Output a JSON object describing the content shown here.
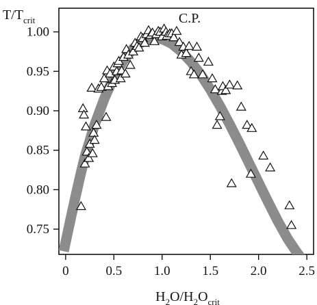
{
  "chart_data": {
    "type": "scatter",
    "title": "",
    "annotation": "C.P.",
    "ylabel": {
      "base": "T/T",
      "sub": "crit"
    },
    "xlabel": {
      "parts": [
        {
          "t": "H",
          "sub": false
        },
        {
          "t": "2",
          "sub": true
        },
        {
          "t": "O/H",
          "sub": false
        },
        {
          "t": "2",
          "sub": true
        },
        {
          "t": "O",
          "sub": false
        },
        {
          "t": "crit",
          "sub": true
        }
      ]
    },
    "xlim": [
      -0.07,
      2.57
    ],
    "ylim": [
      0.718,
      1.03
    ],
    "xticks": [
      0,
      0.5,
      1.0,
      1.5,
      2.0,
      2.5
    ],
    "xtick_labels": [
      "0",
      "0.5",
      "1.0",
      "1.5",
      "2.0",
      "2.5"
    ],
    "yticks": [
      0.75,
      0.8,
      0.85,
      0.9,
      0.95,
      1.0
    ],
    "ytick_labels": [
      "0.75",
      "0.80",
      "0.85",
      "0.90",
      "0.95",
      "1.00"
    ],
    "marker": "open-triangle",
    "fit_curve": {
      "style": "thick-gray",
      "color": "#8c8c8c",
      "x": [
        -0.02,
        0.05,
        0.1,
        0.15,
        0.2,
        0.3,
        0.4,
        0.5,
        0.6,
        0.7,
        0.8,
        0.9,
        1.0,
        1.1,
        1.2,
        1.3,
        1.4,
        1.5,
        1.6,
        1.7,
        1.8,
        1.9,
        2.0,
        2.1,
        2.2,
        2.3,
        2.4,
        2.45
      ],
      "y": [
        0.722,
        0.762,
        0.79,
        0.817,
        0.842,
        0.882,
        0.915,
        0.943,
        0.964,
        0.979,
        0.988,
        0.992,
        0.991,
        0.985,
        0.975,
        0.962,
        0.946,
        0.927,
        0.906,
        0.883,
        0.859,
        0.834,
        0.809,
        0.784,
        0.76,
        0.738,
        0.72,
        0.712
      ]
    },
    "points": [
      [
        0.16,
        0.779
      ],
      [
        0.18,
        0.903
      ],
      [
        0.19,
        0.895
      ],
      [
        0.2,
        0.833
      ],
      [
        0.21,
        0.88
      ],
      [
        0.22,
        0.848
      ],
      [
        0.24,
        0.84
      ],
      [
        0.25,
        0.858
      ],
      [
        0.27,
        0.929
      ],
      [
        0.28,
        0.846
      ],
      [
        0.29,
        0.872
      ],
      [
        0.3,
        0.863
      ],
      [
        0.32,
        0.882
      ],
      [
        0.34,
        0.928
      ],
      [
        0.37,
        0.93
      ],
      [
        0.4,
        0.941
      ],
      [
        0.42,
        0.892
      ],
      [
        0.43,
        0.951
      ],
      [
        0.44,
        0.931
      ],
      [
        0.46,
        0.947
      ],
      [
        0.48,
        0.935
      ],
      [
        0.5,
        0.956
      ],
      [
        0.51,
        0.939
      ],
      [
        0.53,
        0.95
      ],
      [
        0.54,
        0.96
      ],
      [
        0.55,
        0.963
      ],
      [
        0.57,
        0.941
      ],
      [
        0.58,
        0.951
      ],
      [
        0.6,
        0.968
      ],
      [
        0.62,
        0.947
      ],
      [
        0.63,
        0.978
      ],
      [
        0.65,
        0.971
      ],
      [
        0.67,
        0.958
      ],
      [
        0.7,
        0.975
      ],
      [
        0.72,
        0.986
      ],
      [
        0.74,
        0.982
      ],
      [
        0.76,
        0.98
      ],
      [
        0.78,
        0.994
      ],
      [
        0.8,
        0.992
      ],
      [
        0.82,
        0.986
      ],
      [
        0.84,
        0.997
      ],
      [
        0.86,
        1.002
      ],
      [
        0.88,
        0.996
      ],
      [
        0.9,
        0.999
      ],
      [
        0.92,
        0.988
      ],
      [
        0.94,
        0.997
      ],
      [
        0.96,
        1.001
      ],
      [
        0.98,
        1.0
      ],
      [
        1.0,
        0.994
      ],
      [
        1.02,
        1.004
      ],
      [
        1.04,
        1.0
      ],
      [
        1.05,
        0.995
      ],
      [
        1.08,
        0.998
      ],
      [
        1.1,
        0.998
      ],
      [
        1.12,
        0.993
      ],
      [
        1.15,
        1.001
      ],
      [
        1.18,
        0.987
      ],
      [
        1.2,
        0.971
      ],
      [
        1.22,
        0.981
      ],
      [
        1.25,
        0.973
      ],
      [
        1.28,
        0.982
      ],
      [
        1.3,
        0.95
      ],
      [
        1.33,
        0.946
      ],
      [
        1.36,
        0.981
      ],
      [
        1.38,
        0.967
      ],
      [
        1.42,
        0.946
      ],
      [
        1.48,
        0.962
      ],
      [
        1.52,
        0.941
      ],
      [
        1.55,
        0.927
      ],
      [
        1.57,
        0.882
      ],
      [
        1.6,
        0.893
      ],
      [
        1.62,
        0.925
      ],
      [
        1.63,
        0.931
      ],
      [
        1.66,
        0.926
      ],
      [
        1.7,
        0.933
      ],
      [
        1.72,
        0.808
      ],
      [
        1.78,
        0.932
      ],
      [
        1.82,
        0.905
      ],
      [
        1.88,
        0.882
      ],
      [
        1.92,
        0.82
      ],
      [
        1.93,
        0.878
      ],
      [
        2.05,
        0.843
      ],
      [
        2.12,
        0.828
      ],
      [
        2.32,
        0.78
      ],
      [
        2.34,
        0.755
      ]
    ]
  }
}
